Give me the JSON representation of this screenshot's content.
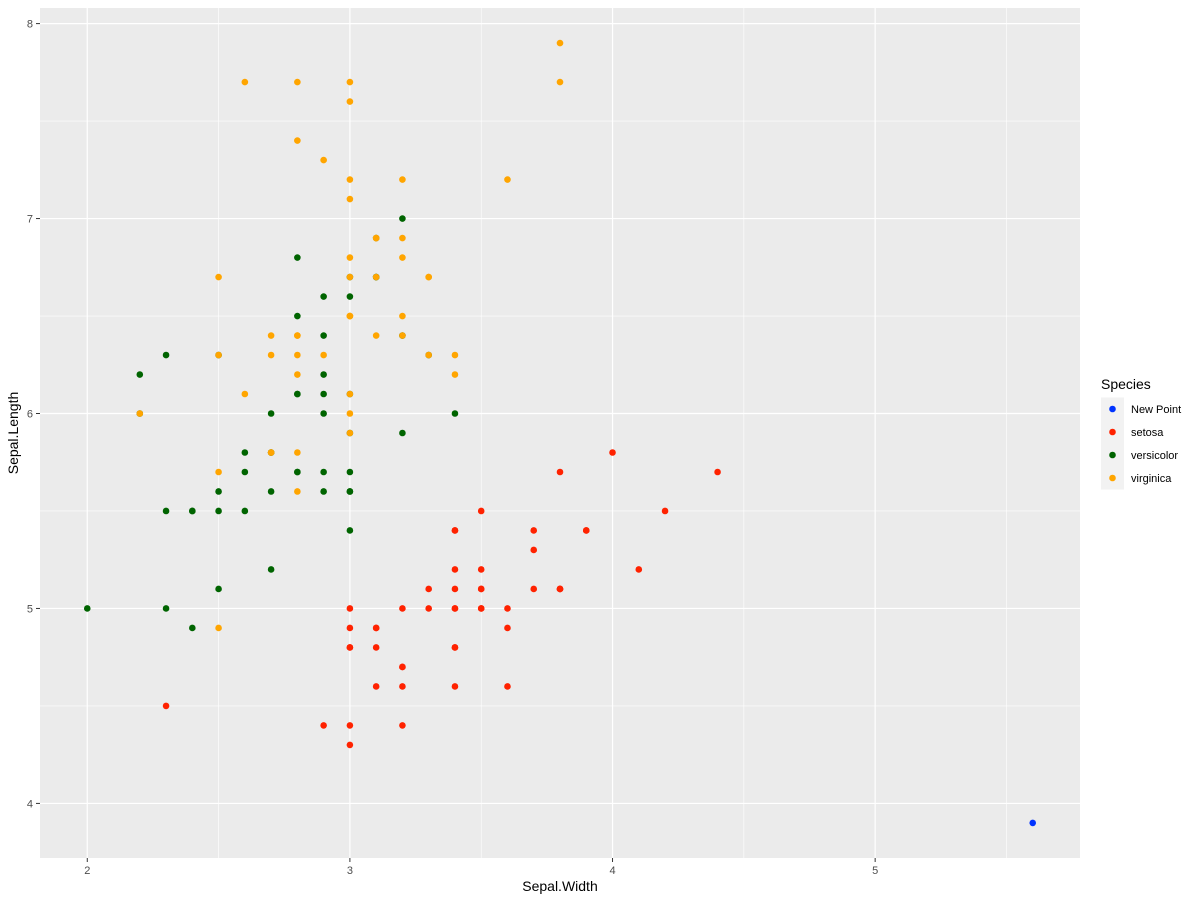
{
  "chart_data": {
    "type": "scatter",
    "xlabel": "Sepal.Width",
    "ylabel": "Sepal.Length",
    "xlim": [
      1.82,
      5.78
    ],
    "ylim": [
      3.72,
      8.08
    ],
    "x_ticks": [
      2,
      3,
      4,
      5
    ],
    "y_ticks": [
      4,
      5,
      6,
      7,
      8
    ],
    "grid": true,
    "legend": {
      "title": "Species",
      "position": "right",
      "entries": [
        {
          "name": "New Point",
          "color": "#0033ff"
        },
        {
          "name": "setosa",
          "color": "#ff2200"
        },
        {
          "name": "versicolor",
          "color": "#006400"
        },
        {
          "name": "virginica",
          "color": "#ffa500"
        }
      ]
    },
    "series": [
      {
        "name": "setosa",
        "color": "#ff2200",
        "points": [
          [
            3.5,
            5.1
          ],
          [
            3.0,
            4.9
          ],
          [
            3.2,
            4.7
          ],
          [
            3.1,
            4.6
          ],
          [
            3.6,
            5.0
          ],
          [
            3.9,
            5.4
          ],
          [
            3.4,
            4.6
          ],
          [
            3.4,
            5.0
          ],
          [
            2.9,
            4.4
          ],
          [
            3.1,
            4.9
          ],
          [
            3.7,
            5.4
          ],
          [
            3.4,
            4.8
          ],
          [
            3.0,
            4.8
          ],
          [
            3.0,
            4.3
          ],
          [
            4.0,
            5.8
          ],
          [
            4.4,
            5.7
          ],
          [
            3.9,
            5.4
          ],
          [
            3.5,
            5.1
          ],
          [
            3.8,
            5.7
          ],
          [
            3.8,
            5.1
          ],
          [
            3.4,
            5.4
          ],
          [
            3.7,
            5.1
          ],
          [
            3.6,
            4.6
          ],
          [
            3.3,
            5.1
          ],
          [
            3.4,
            4.8
          ],
          [
            3.0,
            5.0
          ],
          [
            3.4,
            5.0
          ],
          [
            3.5,
            5.2
          ],
          [
            3.4,
            5.2
          ],
          [
            3.2,
            4.7
          ],
          [
            3.1,
            4.8
          ],
          [
            3.4,
            5.4
          ],
          [
            4.1,
            5.2
          ],
          [
            4.2,
            5.5
          ],
          [
            3.1,
            4.9
          ],
          [
            3.2,
            5.0
          ],
          [
            3.5,
            5.5
          ],
          [
            3.6,
            4.9
          ],
          [
            3.0,
            4.4
          ],
          [
            3.4,
            5.1
          ],
          [
            3.5,
            5.0
          ],
          [
            2.3,
            4.5
          ],
          [
            3.2,
            4.4
          ],
          [
            3.5,
            5.0
          ],
          [
            3.8,
            5.1
          ],
          [
            3.0,
            4.8
          ],
          [
            3.8,
            5.1
          ],
          [
            3.2,
            4.6
          ],
          [
            3.7,
            5.3
          ],
          [
            3.3,
            5.0
          ]
        ]
      },
      {
        "name": "versicolor",
        "color": "#006400",
        "points": [
          [
            3.2,
            7.0
          ],
          [
            3.2,
            6.4
          ],
          [
            3.1,
            6.9
          ],
          [
            2.3,
            5.5
          ],
          [
            2.8,
            6.5
          ],
          [
            2.8,
            5.7
          ],
          [
            3.3,
            6.3
          ],
          [
            2.4,
            4.9
          ],
          [
            2.9,
            6.6
          ],
          [
            2.7,
            5.2
          ],
          [
            2.0,
            5.0
          ],
          [
            3.0,
            5.9
          ],
          [
            2.2,
            6.0
          ],
          [
            2.9,
            6.1
          ],
          [
            2.9,
            5.6
          ],
          [
            3.1,
            6.7
          ],
          [
            3.0,
            5.6
          ],
          [
            2.7,
            5.8
          ],
          [
            2.2,
            6.2
          ],
          [
            2.5,
            5.6
          ],
          [
            3.2,
            5.9
          ],
          [
            2.8,
            6.1
          ],
          [
            2.5,
            6.3
          ],
          [
            2.8,
            6.1
          ],
          [
            2.9,
            6.4
          ],
          [
            3.0,
            6.6
          ],
          [
            2.8,
            6.8
          ],
          [
            3.0,
            6.7
          ],
          [
            2.9,
            6.0
          ],
          [
            2.6,
            5.7
          ],
          [
            2.4,
            5.5
          ],
          [
            2.4,
            5.5
          ],
          [
            2.7,
            5.8
          ],
          [
            2.7,
            6.0
          ],
          [
            3.0,
            5.4
          ],
          [
            3.4,
            6.0
          ],
          [
            3.1,
            6.7
          ],
          [
            2.3,
            6.3
          ],
          [
            3.0,
            5.6
          ],
          [
            2.5,
            5.5
          ],
          [
            2.6,
            5.5
          ],
          [
            3.0,
            6.1
          ],
          [
            2.6,
            5.8
          ],
          [
            2.3,
            5.0
          ],
          [
            2.7,
            5.6
          ],
          [
            3.0,
            5.7
          ],
          [
            2.9,
            5.7
          ],
          [
            2.9,
            6.2
          ],
          [
            2.5,
            5.1
          ],
          [
            2.8,
            5.7
          ]
        ]
      },
      {
        "name": "virginica",
        "color": "#ffa500",
        "points": [
          [
            3.3,
            6.3
          ],
          [
            2.7,
            5.8
          ],
          [
            3.0,
            7.1
          ],
          [
            2.9,
            6.3
          ],
          [
            3.0,
            6.5
          ],
          [
            3.0,
            7.6
          ],
          [
            2.5,
            4.9
          ],
          [
            2.9,
            7.3
          ],
          [
            2.5,
            6.7
          ],
          [
            3.6,
            7.2
          ],
          [
            3.2,
            6.5
          ],
          [
            2.7,
            6.4
          ],
          [
            3.0,
            6.8
          ],
          [
            2.5,
            5.7
          ],
          [
            2.8,
            5.8
          ],
          [
            3.2,
            6.4
          ],
          [
            3.0,
            6.5
          ],
          [
            3.8,
            7.7
          ],
          [
            2.6,
            7.7
          ],
          [
            2.2,
            6.0
          ],
          [
            3.2,
            6.9
          ],
          [
            2.8,
            5.6
          ],
          [
            2.8,
            7.7
          ],
          [
            2.7,
            6.3
          ],
          [
            3.3,
            6.7
          ],
          [
            3.2,
            7.2
          ],
          [
            2.8,
            6.2
          ],
          [
            3.0,
            6.1
          ],
          [
            2.8,
            6.4
          ],
          [
            3.0,
            7.2
          ],
          [
            2.8,
            7.4
          ],
          [
            3.8,
            7.9
          ],
          [
            2.8,
            6.4
          ],
          [
            2.8,
            6.3
          ],
          [
            2.6,
            6.1
          ],
          [
            3.0,
            7.7
          ],
          [
            3.4,
            6.3
          ],
          [
            3.1,
            6.4
          ],
          [
            3.0,
            6.0
          ],
          [
            3.1,
            6.9
          ],
          [
            3.1,
            6.7
          ],
          [
            3.1,
            6.9
          ],
          [
            2.7,
            5.8
          ],
          [
            3.2,
            6.8
          ],
          [
            3.3,
            6.7
          ],
          [
            3.0,
            6.7
          ],
          [
            2.5,
            6.3
          ],
          [
            3.0,
            6.5
          ],
          [
            3.4,
            6.2
          ],
          [
            3.0,
            5.9
          ]
        ]
      },
      {
        "name": "New Point",
        "color": "#0033ff",
        "points": [
          [
            5.6,
            3.9
          ]
        ]
      }
    ]
  }
}
